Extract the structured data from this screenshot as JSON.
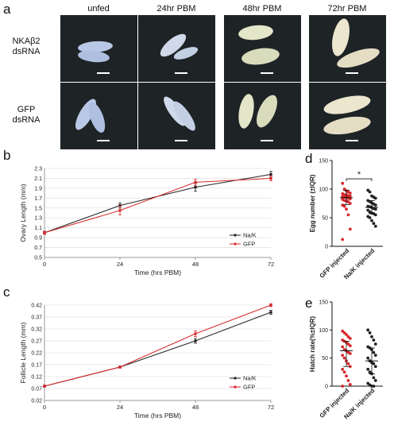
{
  "panels": {
    "a": "a",
    "b": "b",
    "c": "c",
    "d": "d",
    "e": "e"
  },
  "photo_grid": {
    "columns": [
      "unfed",
      "24hr PBM",
      "48hr PBM",
      "72hr PBM"
    ],
    "rows": [
      {
        "line1": "NKAβ2",
        "line2": "dsRNA"
      },
      {
        "line1": "GFP",
        "line2": "dsRNA"
      }
    ],
    "colors": {
      "bg": "#1e2326",
      "unfed": "#b9c8e6",
      "h24": "#cfd9ea",
      "h48": "#e3e6c8",
      "h72": "#ece6cf"
    }
  },
  "chart_data": [
    {
      "id": "b",
      "type": "line",
      "xlabel": "Time (hrs PBM)",
      "ylabel": "Ovary Length (mm)",
      "x": [
        0,
        24,
        48,
        72
      ],
      "xticks": [
        "0",
        "24",
        "48",
        "72"
      ],
      "yticks": [
        "0.5",
        "0.7",
        "0.9",
        "1.1",
        "1.3",
        "1.5",
        "1.7",
        "1.9",
        "2.1",
        "2.3"
      ],
      "ylim": [
        0.5,
        2.3
      ],
      "legend_position": "bottom-right",
      "series": [
        {
          "name": "Na/K",
          "color": "#222222",
          "values": [
            1.0,
            1.55,
            1.92,
            2.18
          ],
          "err": [
            0.03,
            0.05,
            0.08,
            0.06
          ]
        },
        {
          "name": "GFP",
          "color": "#d8282c",
          "values": [
            1.0,
            1.45,
            2.02,
            2.1
          ],
          "err": [
            0.03,
            0.09,
            0.06,
            0.05
          ]
        }
      ]
    },
    {
      "id": "c",
      "type": "line",
      "xlabel": "Time (hrs PBM)",
      "ylabel": "Follicle Length (mm)",
      "x": [
        0,
        24,
        48,
        72
      ],
      "xticks": [
        "0",
        "24",
        "48",
        "72"
      ],
      "yticks": [
        "0.02",
        "0.07",
        "0.12",
        "0.17",
        "0.22",
        "0.27",
        "0.32",
        "0.37",
        "0.42"
      ],
      "ylim": [
        0.02,
        0.42
      ],
      "legend_position": "bottom-right",
      "series": [
        {
          "name": "Na/K",
          "color": "#222222",
          "values": [
            0.08,
            0.16,
            0.27,
            0.39
          ],
          "err": [
            0.004,
            0.004,
            0.01,
            0.008
          ]
        },
        {
          "name": "GFP",
          "color": "#d8282c",
          "values": [
            0.08,
            0.16,
            0.3,
            0.42
          ],
          "err": [
            0.004,
            0.004,
            0.012,
            0.006
          ]
        }
      ]
    },
    {
      "id": "d",
      "type": "scatter",
      "ylabel": "Egg number (±IQR)",
      "categories": [
        "GFP injected",
        "Na/K injected"
      ],
      "yticks": [
        "0",
        "50",
        "100",
        "150"
      ],
      "ylim": [
        0,
        150
      ],
      "annotation": "*",
      "series": [
        {
          "name": "GFP injected",
          "color": "#d8282c",
          "median": 85,
          "q1": 73,
          "q3": 98,
          "values": [
            110,
            100,
            97,
            95,
            93,
            92,
            90,
            90,
            88,
            88,
            87,
            86,
            85,
            84,
            83,
            82,
            80,
            79,
            78,
            75,
            72,
            70,
            65,
            55,
            30,
            12
          ]
        },
        {
          "name": "Na/K injected",
          "color": "#222222",
          "median": 68,
          "q1": 57,
          "q3": 80,
          "values": [
            98,
            95,
            88,
            86,
            84,
            80,
            78,
            76,
            74,
            72,
            70,
            69,
            68,
            66,
            65,
            63,
            60,
            58,
            57,
            55,
            52,
            50,
            45,
            40,
            35
          ]
        }
      ]
    },
    {
      "id": "e",
      "type": "scatter",
      "ylabel": "Hatch rate(%±IQR)",
      "categories": [
        "GFP injected",
        "Na/K injected"
      ],
      "yticks": [
        "0",
        "50",
        "100",
        "150"
      ],
      "ylim": [
        0,
        150
      ],
      "series": [
        {
          "name": "GFP injected",
          "color": "#d8282c",
          "median": 63,
          "q1": 35,
          "q3": 80,
          "values": [
            98,
            95,
            92,
            88,
            85,
            82,
            80,
            78,
            75,
            72,
            70,
            65,
            63,
            60,
            58,
            55,
            50,
            45,
            40,
            35,
            30,
            25,
            18,
            10,
            3,
            0
          ]
        },
        {
          "name": "Na/K injected",
          "color": "#222222",
          "median": 45,
          "q1": 22,
          "q3": 68,
          "values": [
            100,
            95,
            88,
            82,
            75,
            70,
            68,
            65,
            60,
            55,
            50,
            45,
            42,
            40,
            35,
            30,
            25,
            22,
            15,
            10,
            5,
            2,
            0,
            0
          ]
        }
      ]
    }
  ]
}
